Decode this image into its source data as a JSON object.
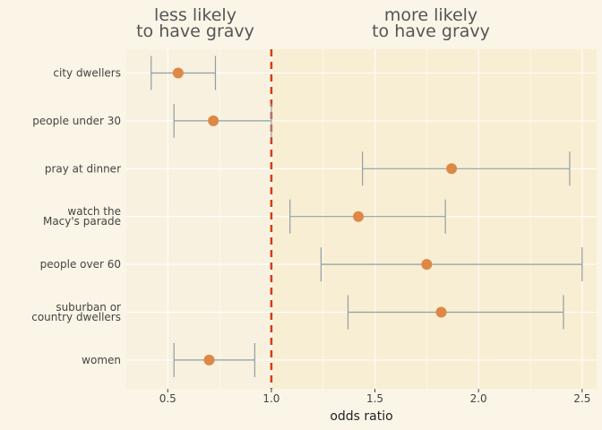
{
  "headers": {
    "left_line1": "less likely",
    "left_line2": "to have gravy",
    "right_line1": "more likely",
    "right_line2": "to have gravy"
  },
  "colors": {
    "background": "#fbf5e7",
    "panel_left": "#f8f1df",
    "panel_right": "#f8eed3",
    "point": "#dd8844",
    "errorbar": "#8f9fa3",
    "reference_line": "#d43d1a"
  },
  "chart_data": {
    "type": "scatter",
    "subtype": "forest-plot",
    "xlabel": "odds ratio",
    "xlim": [
      0.3,
      2.57
    ],
    "xticks": [
      0.5,
      1.0,
      1.5,
      2.0,
      2.5
    ],
    "xtick_labels": [
      "0.5",
      "1.0",
      "1.5",
      "2.0",
      "2.5"
    ],
    "reference_line": 1.0,
    "grid": true,
    "rows": [
      {
        "label": [
          "city dwellers"
        ],
        "estimate": 0.55,
        "lower": 0.42,
        "upper": 0.73
      },
      {
        "label": [
          "people under 30"
        ],
        "estimate": 0.72,
        "lower": 0.53,
        "upper": 1.0
      },
      {
        "label": [
          "pray at dinner"
        ],
        "estimate": 1.87,
        "lower": 1.44,
        "upper": 2.44
      },
      {
        "label": [
          "watch the",
          "Macy's parade"
        ],
        "estimate": 1.42,
        "lower": 1.09,
        "upper": 1.84
      },
      {
        "label": [
          "people over 60"
        ],
        "estimate": 1.75,
        "lower": 1.24,
        "upper": 2.5
      },
      {
        "label": [
          "suburban or",
          "country dwellers"
        ],
        "estimate": 1.82,
        "lower": 1.37,
        "upper": 2.41
      },
      {
        "label": [
          "women"
        ],
        "estimate": 0.7,
        "lower": 0.53,
        "upper": 0.92
      }
    ]
  }
}
